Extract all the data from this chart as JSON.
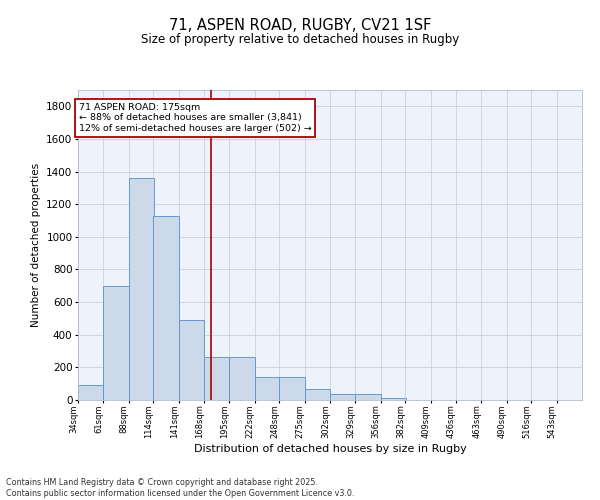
{
  "title_line1": "71, ASPEN ROAD, RUGBY, CV21 1SF",
  "title_line2": "Size of property relative to detached houses in Rugby",
  "xlabel": "Distribution of detached houses by size in Rugby",
  "ylabel": "Number of detached properties",
  "bar_color": "#ccd9e8",
  "bar_edge_color": "#6699cc",
  "marker_line_color": "#aa0000",
  "marker_value": 175,
  "annotation_title": "71 ASPEN ROAD: 175sqm",
  "annotation_line1": "← 88% of detached houses are smaller (3,841)",
  "annotation_line2": "12% of semi-detached houses are larger (502) →",
  "bins": [
    34,
    61,
    88,
    114,
    141,
    168,
    195,
    222,
    248,
    275,
    302,
    329,
    356,
    382,
    409,
    436,
    463,
    490,
    516,
    543,
    570
  ],
  "counts": [
    95,
    700,
    1360,
    1130,
    490,
    265,
    265,
    140,
    140,
    65,
    35,
    35,
    12,
    0,
    0,
    0,
    0,
    0,
    0,
    0,
    0
  ],
  "ylim": [
    0,
    1900
  ],
  "yticks": [
    0,
    200,
    400,
    600,
    800,
    1000,
    1200,
    1400,
    1600,
    1800
  ],
  "grid_color": "#c8d0e0",
  "background_color": "#eef2fa",
  "footer_line1": "Contains HM Land Registry data © Crown copyright and database right 2025.",
  "footer_line2": "Contains public sector information licensed under the Open Government Licence v3.0."
}
